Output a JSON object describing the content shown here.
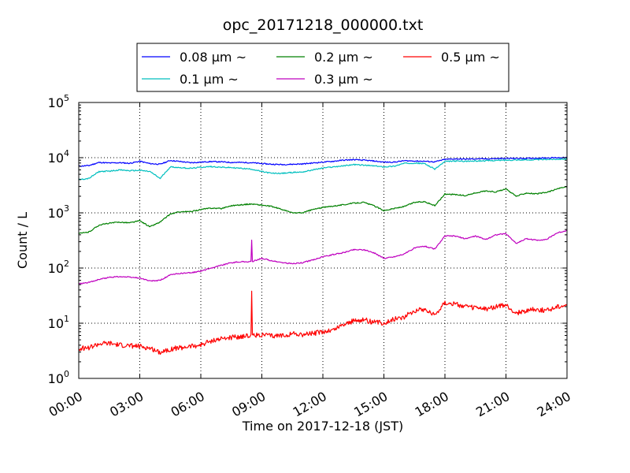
{
  "chart_data": {
    "type": "line",
    "title": "opc_20171218_000000.txt",
    "xlabel": "Time on 2017-12-18 (JST)",
    "ylabel": "Count / L",
    "yscale": "log",
    "xlim": [
      "00:00",
      "24:00"
    ],
    "ylim": [
      1,
      100000
    ],
    "grid": true,
    "legend_position": "top-center",
    "x_ticks": [
      "00:00",
      "03:00",
      "06:00",
      "09:00",
      "12:00",
      "15:00",
      "18:00",
      "21:00",
      "24:00"
    ],
    "y_ticks": [
      {
        "value": 1,
        "base": "10",
        "exp": "0"
      },
      {
        "value": 10,
        "base": "10",
        "exp": "1"
      },
      {
        "value": 100,
        "base": "10",
        "exp": "2"
      },
      {
        "value": 1000,
        "base": "10",
        "exp": "3"
      },
      {
        "value": 10000,
        "base": "10",
        "exp": "4"
      },
      {
        "value": 100000,
        "base": "10",
        "exp": "5"
      }
    ],
    "x_hours": [
      0,
      0.5,
      1,
      1.5,
      2,
      2.5,
      3,
      3.5,
      4,
      4.5,
      5,
      5.5,
      6,
      6.5,
      7,
      7.5,
      8,
      8.5,
      9,
      9.5,
      10,
      10.5,
      11,
      11.5,
      12,
      12.5,
      13,
      13.5,
      14,
      14.5,
      15,
      15.5,
      16,
      16.5,
      17,
      17.5,
      18,
      18.5,
      19,
      19.5,
      20,
      20.5,
      21,
      21.5,
      22,
      22.5,
      23,
      23.5,
      24
    ],
    "series": [
      {
        "name": "0.08 μm ~",
        "color": "#0000ff",
        "values": [
          7000,
          7200,
          8200,
          8000,
          8100,
          7900,
          8600,
          7800,
          7600,
          8900,
          8500,
          8100,
          8300,
          8500,
          8400,
          8200,
          8200,
          8100,
          7800,
          7600,
          7500,
          7600,
          7700,
          8000,
          8300,
          8600,
          9000,
          9200,
          9000,
          8700,
          8300,
          8300,
          8800,
          8700,
          8600,
          8400,
          9300,
          9500,
          9400,
          9500,
          9500,
          9600,
          9700,
          9700,
          9700,
          9800,
          9900,
          10000,
          10000
        ]
      },
      {
        "name": "0.1 μm ~",
        "color": "#00bfbf",
        "values": [
          4000,
          4200,
          5600,
          5700,
          6000,
          5800,
          5900,
          5600,
          4200,
          6800,
          6600,
          6400,
          6700,
          6900,
          6700,
          6600,
          6400,
          6200,
          5600,
          5200,
          5200,
          5400,
          5500,
          6000,
          6500,
          6800,
          7100,
          7500,
          7300,
          7100,
          6800,
          7000,
          7900,
          8000,
          7800,
          6200,
          8500,
          8700,
          8600,
          8700,
          8800,
          8900,
          9000,
          9100,
          9100,
          9200,
          9300,
          9400,
          9500
        ]
      },
      {
        "name": "0.2 μm ~",
        "color": "#008000",
        "values": [
          420,
          450,
          600,
          650,
          680,
          660,
          720,
          560,
          680,
          950,
          1050,
          1050,
          1150,
          1220,
          1200,
          1350,
          1400,
          1450,
          1380,
          1300,
          1150,
          1000,
          1000,
          1150,
          1250,
          1330,
          1400,
          1500,
          1550,
          1350,
          1100,
          1200,
          1300,
          1550,
          1600,
          1350,
          2200,
          2150,
          2050,
          2300,
          2500,
          2400,
          2700,
          2000,
          2300,
          2200,
          2350,
          2700,
          3000
        ]
      },
      {
        "name": "0.3 μm ~",
        "color": "#bf00bf",
        "values": [
          52,
          55,
          62,
          68,
          70,
          68,
          66,
          58,
          60,
          75,
          80,
          82,
          88,
          100,
          112,
          125,
          130,
          130,
          150,
          135,
          125,
          120,
          125,
          140,
          160,
          175,
          190,
          215,
          215,
          190,
          150,
          160,
          180,
          230,
          250,
          220,
          380,
          380,
          340,
          380,
          330,
          400,
          420,
          280,
          340,
          320,
          330,
          430,
          480
        ]
      },
      {
        "name": "0.5 μm ~",
        "color": "#ff0000",
        "values": [
          3.5,
          3.6,
          4.2,
          4.3,
          4.0,
          3.9,
          3.8,
          3.5,
          3.0,
          3.4,
          3.6,
          3.8,
          4.0,
          4.8,
          5.2,
          5.5,
          5.8,
          6.0,
          6.2,
          5.8,
          6.0,
          6.5,
          6.2,
          6.5,
          7.0,
          7.5,
          9.5,
          11.0,
          11.5,
          10.5,
          10.0,
          12.0,
          13.0,
          17.0,
          18.0,
          14.0,
          24.0,
          22.0,
          20.0,
          19.0,
          18.0,
          20.0,
          21.0,
          15.0,
          17.0,
          18.0,
          17.0,
          20.0,
          22.0
        ]
      }
    ]
  }
}
